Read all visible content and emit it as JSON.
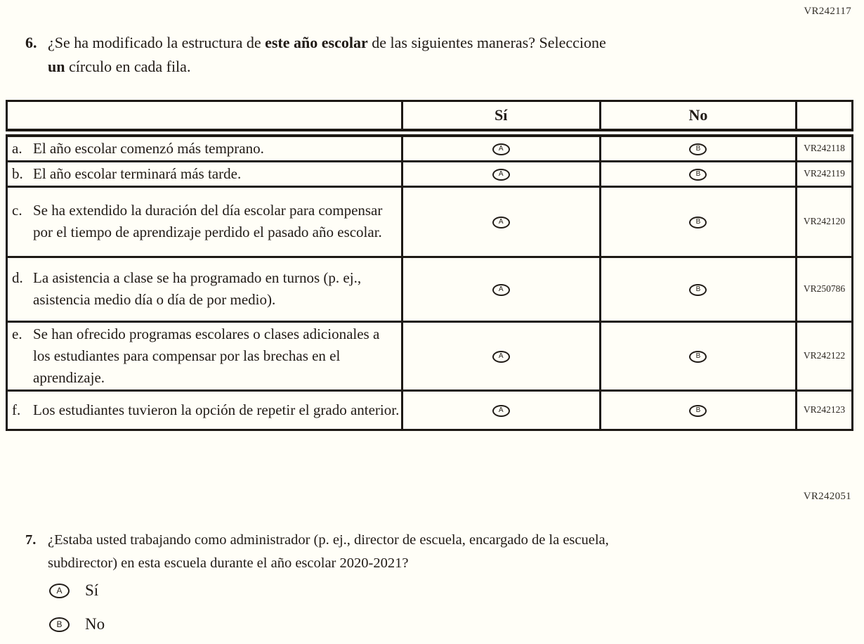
{
  "page": {
    "bg_color": "#fffef7",
    "text_color": "#211b16"
  },
  "codes": {
    "top_right": "VR242117",
    "middle_right": "VR242051"
  },
  "question6": {
    "number": "6.",
    "line1": {
      "pre": "¿Se ha modificado la estructura de ",
      "bold": "este año escolar",
      "post": " de las siguientes maneras? Seleccione"
    },
    "line2": {
      "bold": "un",
      "post": " círculo en cada fila."
    },
    "table": {
      "header": {
        "si": "Sí",
        "no": "No"
      },
      "rows": [
        {
          "label": "a.",
          "text": "El año escolar comenzó más temprano.",
          "options": [
            "A",
            "B"
          ],
          "code": "VR242118"
        },
        {
          "label": "b.",
          "text": "El año escolar terminará más tarde.",
          "options": [
            "A",
            "B"
          ],
          "code": "VR242119"
        },
        {
          "label": "c.",
          "text": "Se ha extendido la duración del día escolar para compensar por el tiempo de aprendizaje perdido el pasado año escolar.",
          "options": [
            "A",
            "B"
          ],
          "code": "VR242120"
        },
        {
          "label": "d.",
          "text": "La asistencia a clase se ha programado en turnos (p. ej., asistencia medio día o día de por medio).",
          "options": [
            "A",
            "B"
          ],
          "code": "VR250786"
        },
        {
          "label": "e.",
          "text": "Se han ofrecido programas escolares o clases adicionales a los estudiantes para compensar por las brechas en el aprendizaje.",
          "options": [
            "A",
            "B"
          ],
          "code": "VR242122"
        },
        {
          "label": "f.",
          "text": "Los estudiantes tuvieron la opción de repetir el grado anterior.",
          "options": [
            "A",
            "B"
          ],
          "code": "VR242123"
        }
      ]
    }
  },
  "question7": {
    "number": "7.",
    "line1": "¿Estaba usted trabajando como administrador (p. ej., director de escuela, encargado de la escuela,",
    "line2": "subdirector) en esta escuela durante el año escolar 2020-2021?",
    "options": [
      {
        "letter": "A",
        "label": "Sí"
      },
      {
        "letter": "B",
        "label": "No"
      }
    ]
  }
}
